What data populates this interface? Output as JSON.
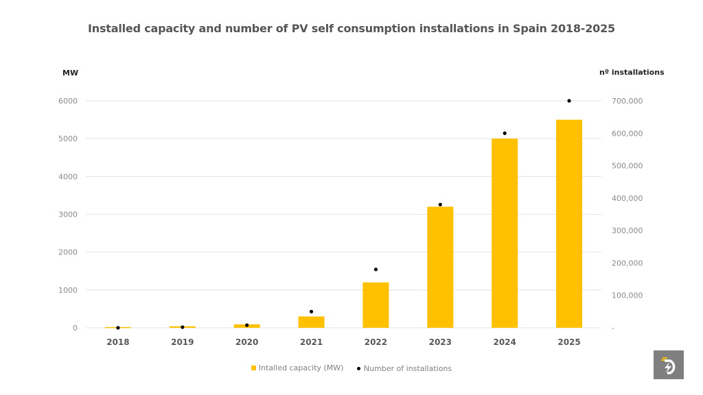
{
  "chart_data": {
    "type": "bar",
    "title": "Installed capacity and number of PV self consumption installations in Spain 2018-2025",
    "categories": [
      "2018",
      "2019",
      "2020",
      "2021",
      "2022",
      "2023",
      "2024",
      "2025"
    ],
    "series": [
      {
        "name": "Intalled capacity (MW)",
        "type": "bar",
        "axis": "left",
        "color": "#FFC000",
        "values": [
          20,
          40,
          90,
          300,
          1200,
          3200,
          5000,
          5500
        ]
      },
      {
        "name": "Number of installations",
        "type": "scatter",
        "axis": "right",
        "color": "#000000",
        "values": [
          0,
          2000,
          8000,
          50000,
          180000,
          380000,
          600000,
          700000
        ]
      }
    ],
    "ylabel": "MW",
    "ylabel_right": "nº installations",
    "ylim": [
      0,
      6000
    ],
    "ylim_right": [
      0,
      700000
    ],
    "yticks": [
      "0",
      "1000",
      "2000",
      "3000",
      "4000",
      "5000",
      "6000"
    ],
    "yticks_right": [
      "-",
      "100,000",
      "200,000",
      "300,000",
      "400,000",
      "500,000",
      "600,000",
      "700,000"
    ],
    "grid": true,
    "legend_position": "bottom"
  },
  "logo": {
    "icon": "lightning-d-logo-icon"
  }
}
